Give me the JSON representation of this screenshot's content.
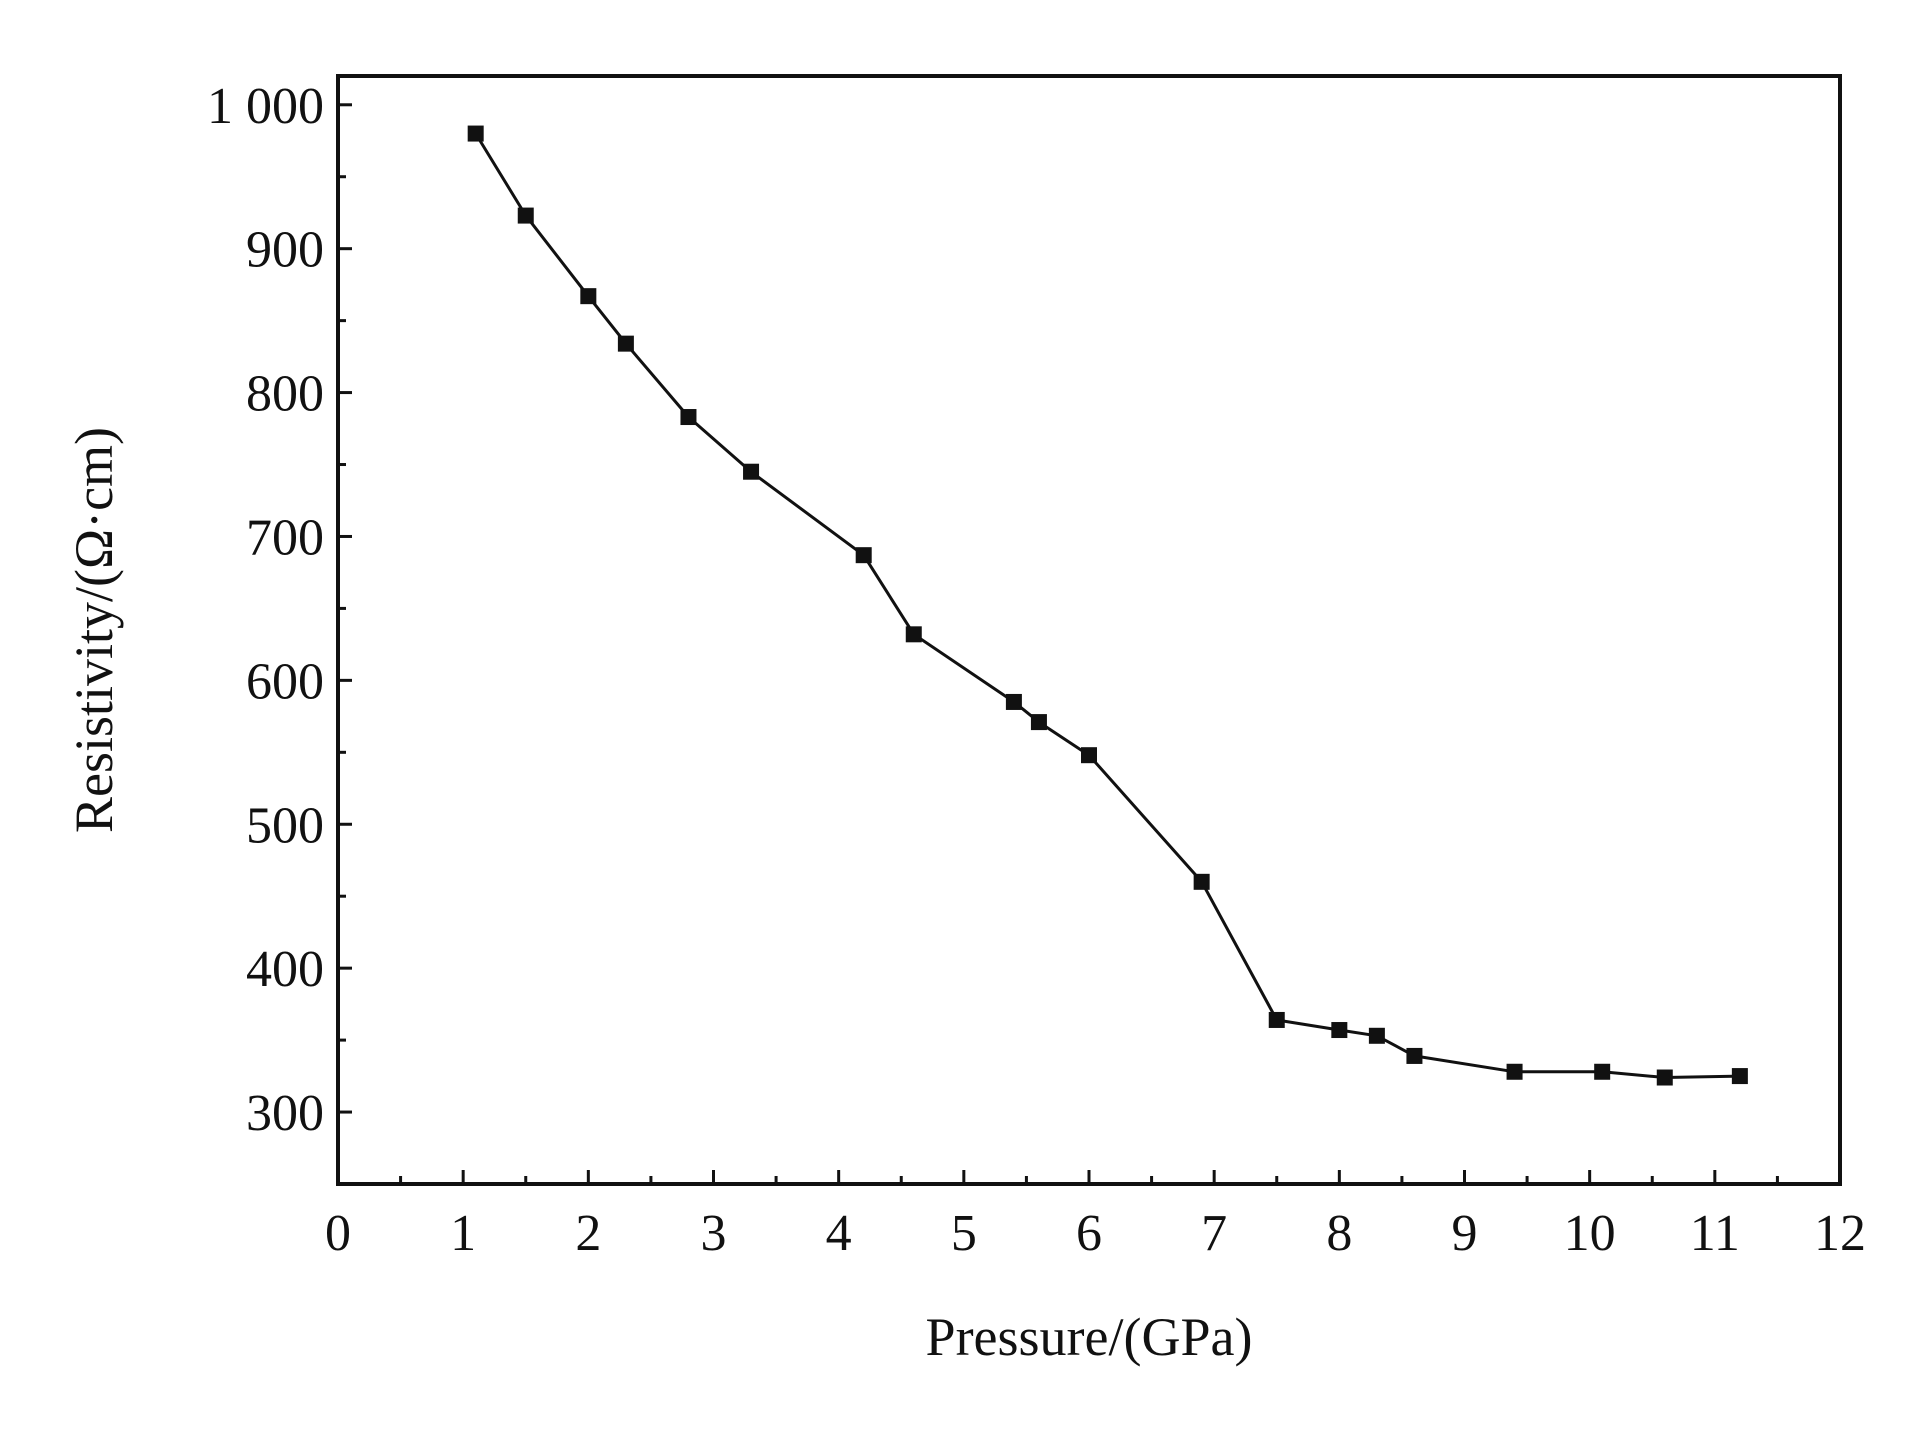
{
  "chart_data": {
    "type": "line",
    "title": "",
    "xlabel": "Pressure/(GPa)",
    "ylabel": "Resistivity/(Ω·cm)",
    "xlim": [
      0,
      12
    ],
    "ylim": [
      250,
      1020
    ],
    "x_ticks": [
      0,
      1,
      2,
      3,
      4,
      5,
      6,
      7,
      8,
      9,
      10,
      11,
      12
    ],
    "x_tick_labels": [
      "0",
      "1",
      "2",
      "3",
      "4",
      "5",
      "6",
      "7",
      "8",
      "9",
      "10",
      "11",
      "12"
    ],
    "y_ticks": [
      300,
      400,
      500,
      600,
      700,
      800,
      900,
      1000
    ],
    "y_tick_labels": [
      "300",
      "400",
      "500",
      "600",
      "700",
      "800",
      "900",
      "1 000"
    ],
    "grid": false,
    "legend": "none",
    "marker": "square",
    "series": [
      {
        "x": [
          1.1,
          1.5,
          2.0,
          2.3,
          2.8,
          3.3,
          4.2,
          4.6,
          5.4,
          5.6,
          6.0,
          6.9,
          7.5,
          8.0,
          8.3,
          8.6,
          9.4,
          10.1,
          10.6,
          11.2
        ],
        "y": [
          980,
          923,
          867,
          834,
          783,
          745,
          687,
          632,
          585,
          571,
          548,
          460,
          364,
          357,
          353,
          339,
          328,
          328,
          324,
          325
        ]
      }
    ],
    "colors": {
      "line": "#111111",
      "marker": "#111111",
      "axes": "#111111"
    }
  }
}
